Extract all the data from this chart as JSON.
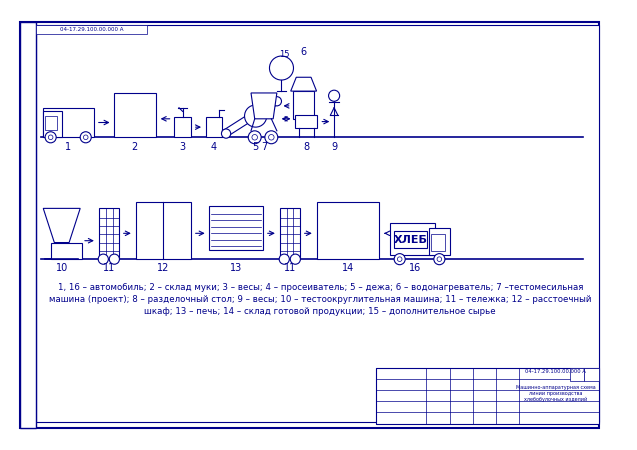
{
  "bg_color": "#ffffff",
  "border_color": "#00008B",
  "line_color": "#00008B",
  "text_color": "#00008B",
  "caption_line1": "1, 16 – автомобиль; 2 – склад муки; 3 – весы; 4 – просеиватель; 5 – дежа; 6 – водонагреватель; 7 –тестомесильная",
  "caption_line2": "машина (проект); 8 – разделочный стол; 9 – весы; 10 – тестоокруглительная машина; 11 – тележка; 12 – расстоечный",
  "caption_line3": "шкаф; 13 – печь; 14 – склад готовой продукции; 15 – дополнительное сырье",
  "doc_code": "04-17.29.100.00.000 А"
}
